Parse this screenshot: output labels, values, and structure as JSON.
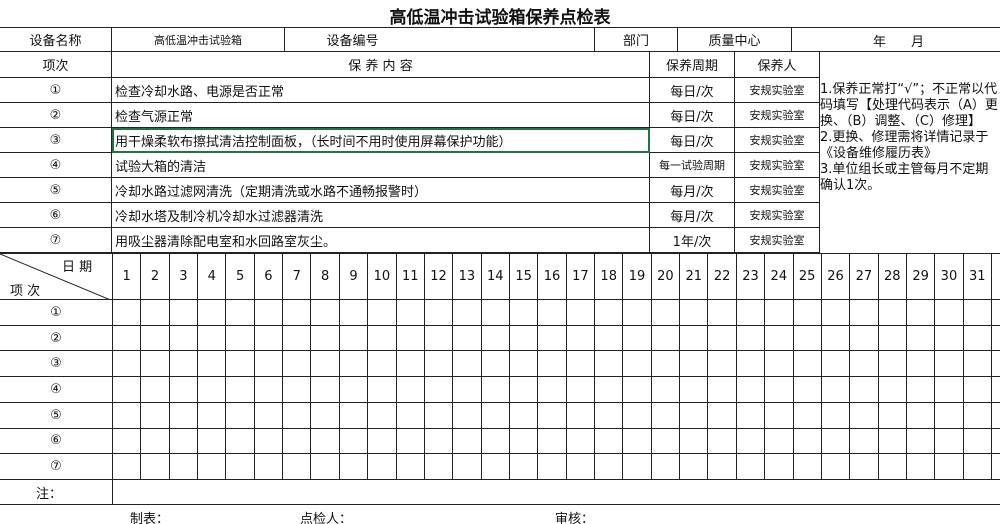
{
  "title": "高低温冲击试验箱保养点检表",
  "header": {
    "equipment_name_label": "设备名称",
    "equipment_name": "高低温冲击试验箱",
    "equipment_no_label": "设备编号",
    "department_label": "部门",
    "department": "质量中心",
    "year_label": "年",
    "month_label": "月"
  },
  "columns": {
    "item": "项次",
    "content": "保 养 内 容",
    "period": "保养周期",
    "person": "保养人"
  },
  "items": [
    {
      "no": "①",
      "content": "检查冷却水路、电源是否正常",
      "period": "每日/次",
      "person": "安规实验室"
    },
    {
      "no": "②",
      "content": "检查气源正常",
      "period": "每日/次",
      "person": "安规实验室"
    },
    {
      "no": "③",
      "content": "用干燥柔软布擦拭清洁控制面板，（长时间不用时使用屏幕保护功能）",
      "period": "每日/次",
      "person": "安规实验室"
    },
    {
      "no": "④",
      "content": "试验大箱的清洁",
      "period": "每一试验周期",
      "person": "安规实验室"
    },
    {
      "no": "⑤",
      "content": "冷却水路过滤网清洗（定期清洗或水路不通畅报警时）",
      "period": "每月/次",
      "person": "安规实验室"
    },
    {
      "no": "⑥",
      "content": "冷却水塔及制冷机冷却水过滤器清洗",
      "period": "每月/次",
      "person": "安规实验室"
    },
    {
      "no": "⑦",
      "content": "用吸尘器清除配电室和水回路室灰尘。",
      "period": "1年/次",
      "person": "安规实验室"
    }
  ],
  "notes": [
    "1.保养正常打“√”；不正常以代码填写【处理代码表示（A）更换、（B）调整、（C）修理】",
    "2.更换、修理需将详情记录于《设备维修履历表》",
    "3.单位组长或主管每月不定期确认1次。"
  ],
  "checklist": {
    "date_label": "日 期",
    "item_label": "项 次",
    "days": [
      1,
      2,
      3,
      4,
      5,
      6,
      7,
      8,
      9,
      10,
      11,
      12,
      13,
      14,
      15,
      16,
      17,
      18,
      19,
      20,
      21,
      22,
      23,
      24,
      25,
      26,
      27,
      28,
      29,
      30,
      31
    ],
    "rows": [
      "①",
      "②",
      "③",
      "④",
      "⑤",
      "⑥",
      "⑦"
    ]
  },
  "remark_label": "注：",
  "footer": [
    "制表：",
    "点检人：",
    "审核："
  ]
}
